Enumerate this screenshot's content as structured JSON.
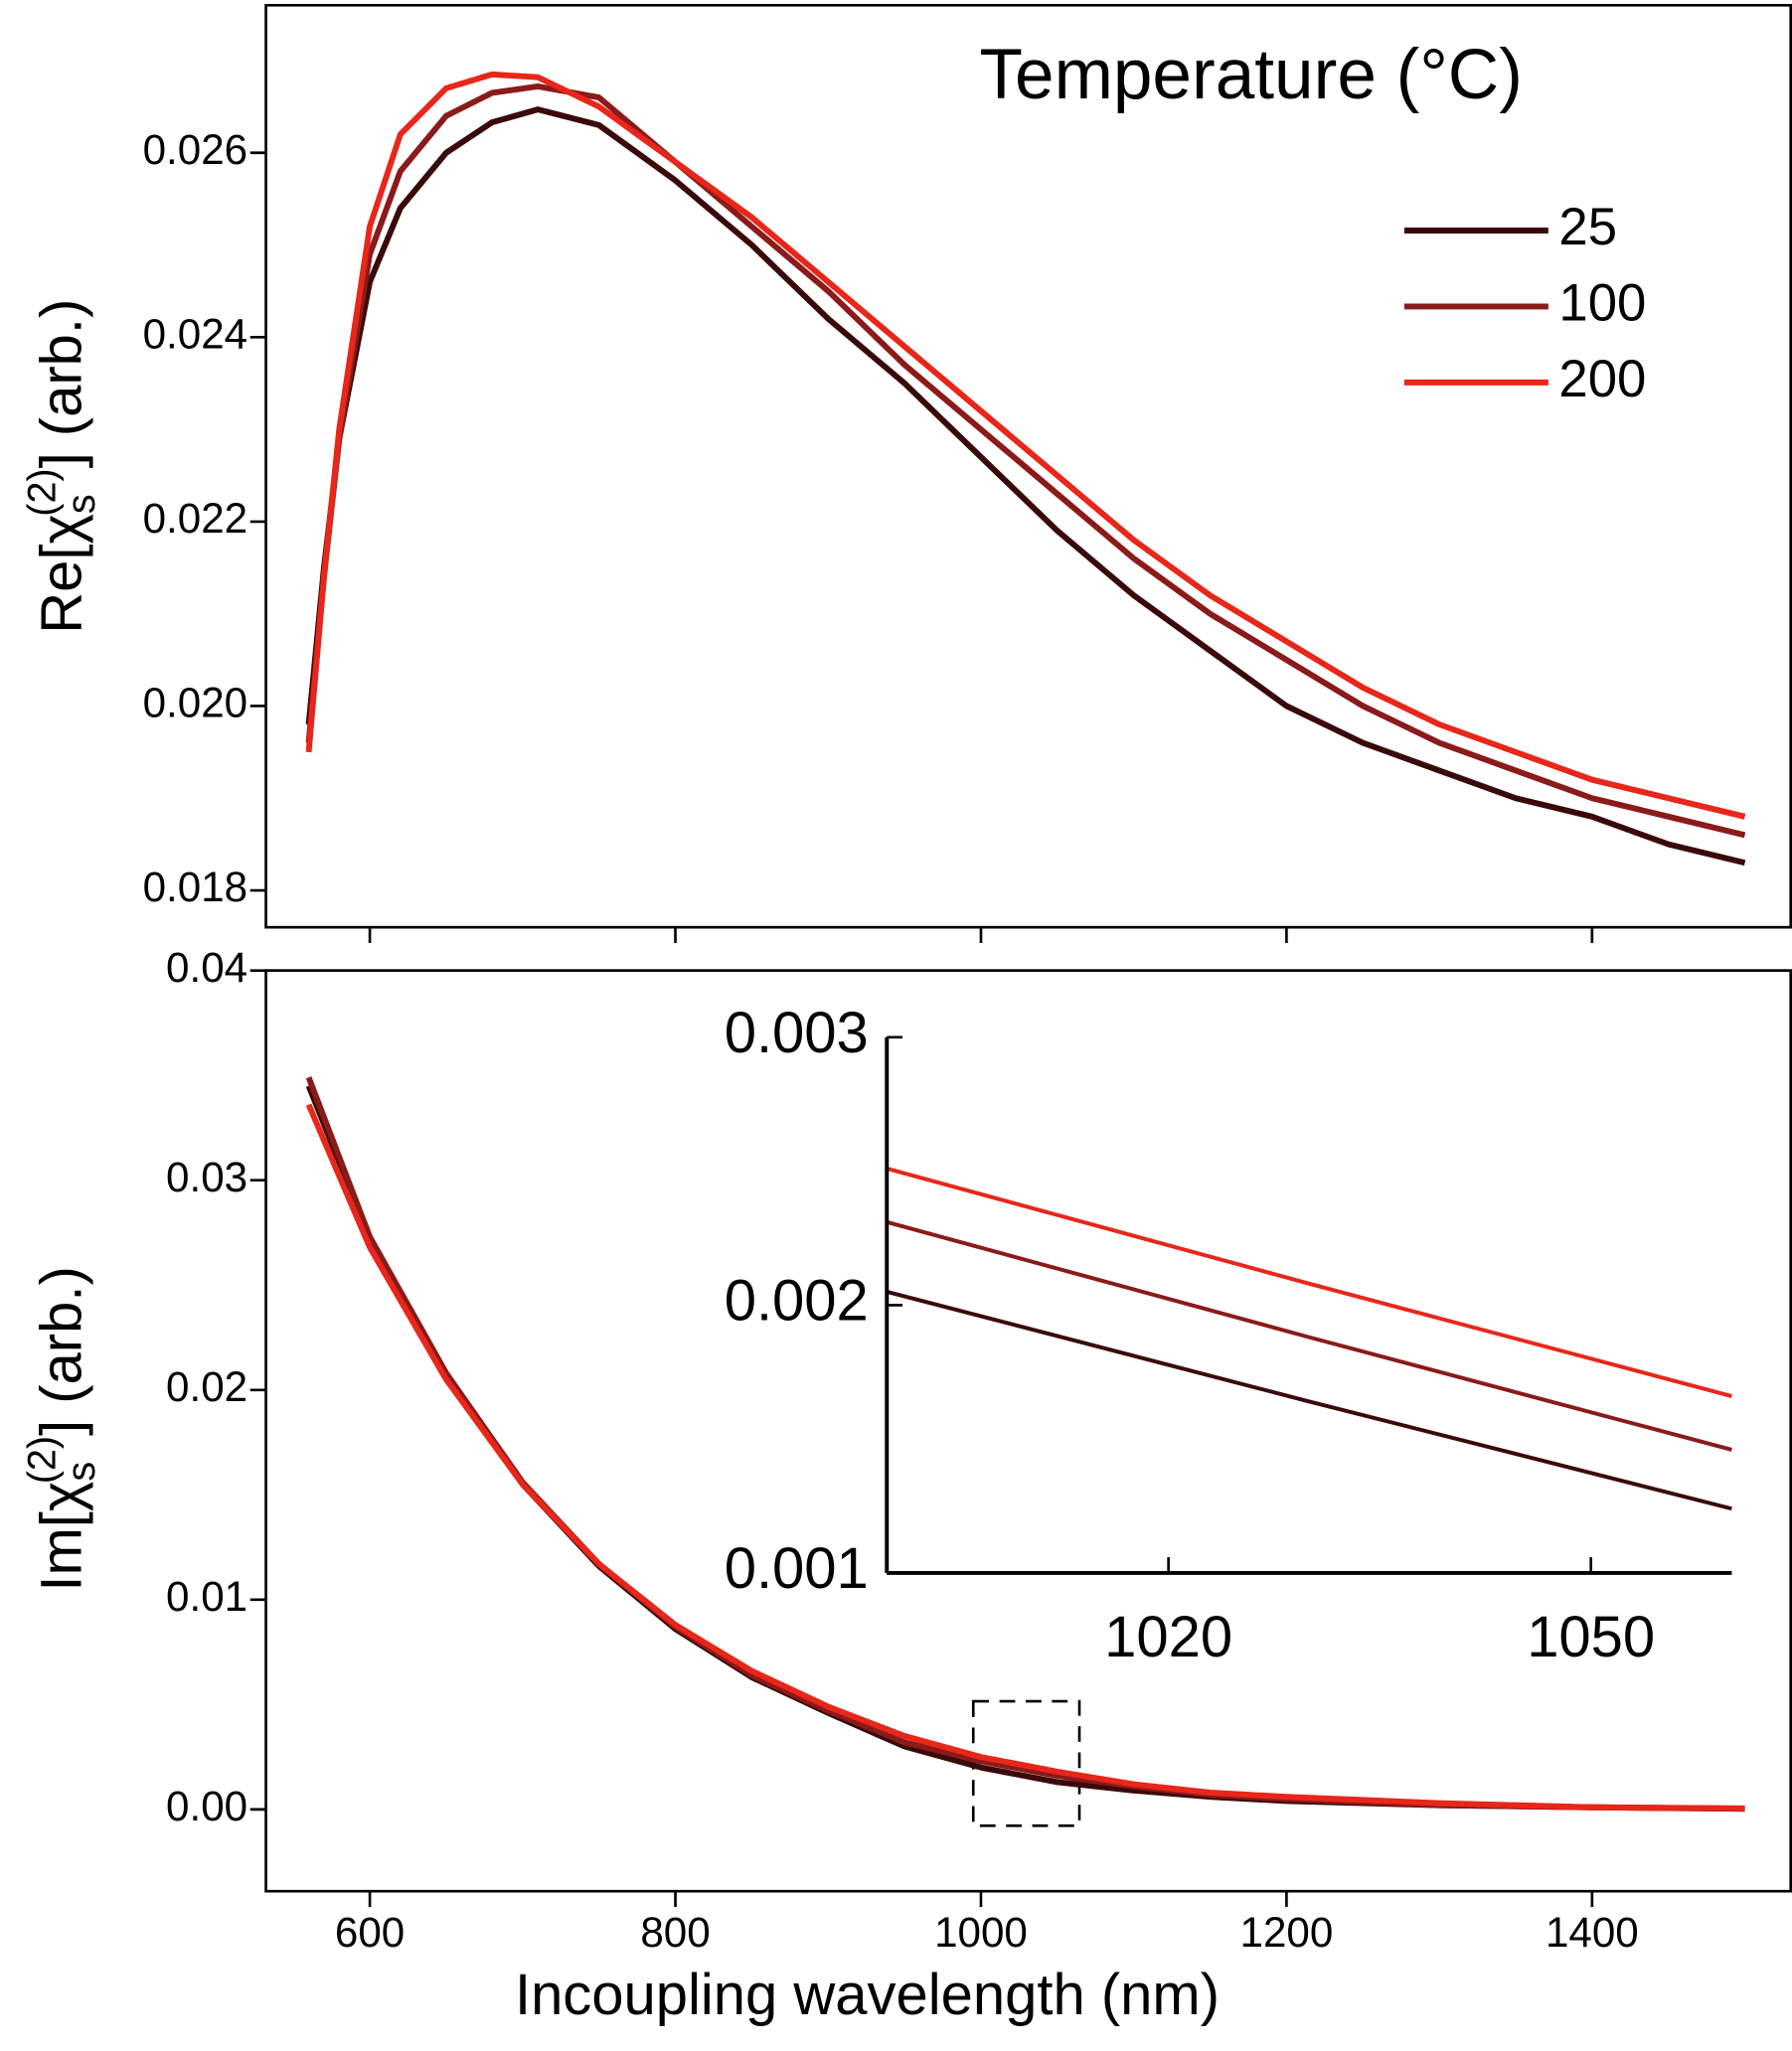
{
  "chart_data": [
    {
      "type": "line",
      "ylabel": [
        "Re[χ",
        "s",
        "(2)",
        "] (arb.)"
      ],
      "legend_title": "Temperature (°C)",
      "legend": "upper right",
      "x": [
        560,
        570,
        580,
        600,
        620,
        650,
        680,
        710,
        750,
        800,
        850,
        900,
        950,
        1000,
        1050,
        1100,
        1150,
        1200,
        1250,
        1300,
        1350,
        1400,
        1450,
        1500
      ],
      "series": [
        {
          "name": "25",
          "color": "#3a0a0a",
          "values": [
            0.0198,
            0.0215,
            0.0229,
            0.0246,
            0.0254,
            0.026,
            0.02633,
            0.02647,
            0.0263,
            0.0257,
            0.025,
            0.0242,
            0.0235,
            0.0227,
            0.0219,
            0.0212,
            0.0206,
            0.02,
            0.0196,
            0.0193,
            0.019,
            0.0188,
            0.0185,
            0.0183
          ]
        },
        {
          "name": "100",
          "color": "#8b1a1a",
          "values": [
            0.0196,
            0.0214,
            0.0229,
            0.0249,
            0.0258,
            0.0264,
            0.02665,
            0.02672,
            0.0266,
            0.0259,
            0.0252,
            0.0245,
            0.0237,
            0.023,
            0.0223,
            0.0216,
            0.021,
            0.0205,
            0.02,
            0.0196,
            0.0193,
            0.019,
            0.0188,
            0.0186
          ]
        },
        {
          "name": "200",
          "color": "#e8261a",
          "values": [
            0.0195,
            0.0214,
            0.023,
            0.0252,
            0.0262,
            0.0267,
            0.02685,
            0.02682,
            0.0265,
            0.0259,
            0.0253,
            0.0246,
            0.0239,
            0.0232,
            0.0225,
            0.0218,
            0.0212,
            0.0207,
            0.0202,
            0.0198,
            0.0195,
            0.0192,
            0.019,
            0.0188
          ]
        }
      ],
      "xlim": [
        532,
        1530
      ],
      "xticks": [
        600,
        800,
        1000,
        1200,
        1400
      ],
      "ylim": [
        0.0176,
        0.0276
      ],
      "yticks": [
        0.018,
        {
          "value": 0.02,
          "label": "0.020"
        },
        0.022,
        0.024,
        0.026
      ]
    },
    {
      "type": "line",
      "xlabel": "Incoupling wavelength (nm)",
      "ylabel": [
        "Im[χ",
        "s",
        "(2)",
        "] (arb.)"
      ],
      "x": [
        560,
        600,
        650,
        700,
        750,
        800,
        850,
        900,
        950,
        1000,
        1050,
        1100,
        1150,
        1200,
        1300,
        1400,
        1500
      ],
      "series": [
        {
          "color": "#3a0a0a",
          "values": [
            0.0345,
            0.0272,
            0.0207,
            0.0155,
            0.0116,
            0.0086,
            0.0063,
            0.0046,
            0.003,
            0.002,
            0.0013,
            0.0009,
            0.0006,
            0.0004,
            0.0002,
            0.0001,
            3e-05
          ]
        },
        {
          "color": "#8b1a1a",
          "values": [
            0.0349,
            0.0273,
            0.0208,
            0.0156,
            0.0117,
            0.0087,
            0.0064,
            0.0047,
            0.0032,
            0.0023,
            0.0016,
            0.0011,
            0.0007,
            0.0005,
            0.0002,
            0.0001,
            4e-05
          ]
        },
        {
          "color": "#e8261a",
          "values": [
            0.0336,
            0.0268,
            0.0205,
            0.0155,
            0.0117,
            0.0088,
            0.0066,
            0.0049,
            0.0035,
            0.0025,
            0.0018,
            0.0012,
            0.0008,
            0.0006,
            0.0003,
            0.0001,
            5e-05
          ]
        }
      ],
      "xlim": [
        532,
        1530
      ],
      "xticks": [
        600,
        800,
        1000,
        1200,
        1400
      ],
      "ylim": [
        -0.0039,
        0.04
      ],
      "yticks": [
        {
          "value": 0,
          "label": "0.00"
        },
        0.01,
        0.02,
        0.03,
        0.04
      ]
    },
    {
      "type": "line",
      "x": [
        1000,
        1030,
        1060
      ],
      "series": [
        {
          "color": "#3a0a0a",
          "values": [
            0.00205,
            0.00164,
            0.00124
          ]
        },
        {
          "color": "#8b1a1a",
          "values": [
            0.00231,
            0.00188,
            0.00146
          ]
        },
        {
          "color": "#e8261a",
          "values": [
            0.00251,
            0.00208,
            0.00166
          ]
        }
      ],
      "xlim": [
        1000,
        1060
      ],
      "xticks": [
        1020,
        1050
      ],
      "ylim": [
        0.001,
        0.003
      ],
      "yticks": [
        0.001,
        0.002,
        0.003
      ]
    }
  ]
}
